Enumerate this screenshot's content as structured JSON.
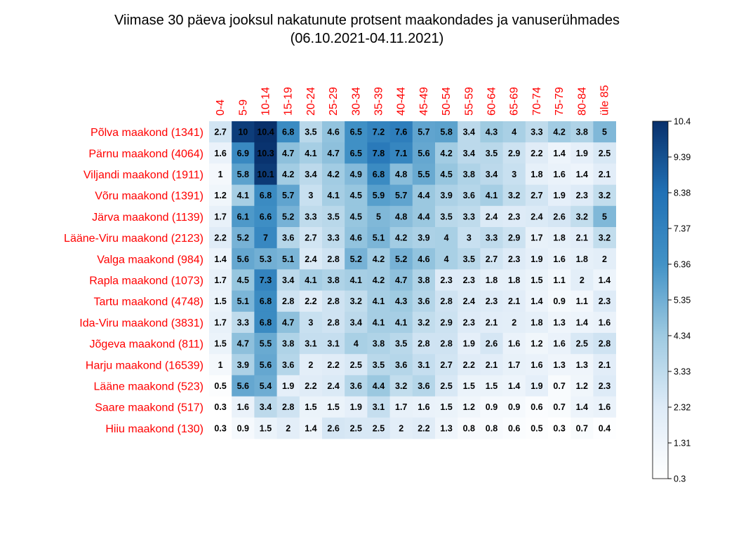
{
  "chart_data": {
    "type": "heatmap",
    "title": "Viimase 30 päeva jooksul nakatunute protsent maakondades ja vanuserühmades",
    "subtitle": "(06.10.2021-04.11.2021)",
    "columns": [
      "0-4",
      "5-9",
      "10-14",
      "15-19",
      "20-24",
      "25-29",
      "30-34",
      "35-39",
      "40-44",
      "45-49",
      "50-54",
      "55-59",
      "60-64",
      "65-69",
      "70-74",
      "75-79",
      "80-84",
      "üle 85"
    ],
    "rows": [
      "Põlva maakond (1341)",
      "Pärnu maakond (4064)",
      "Viljandi maakond (1911)",
      "Võru maakond (1391)",
      "Järva maakond (1139)",
      "Lääne-Viru maakond (2123)",
      "Valga maakond (984)",
      "Rapla maakond (1073)",
      "Tartu maakond (4748)",
      "Ida-Viru maakond (3831)",
      "Jõgeva maakond (811)",
      "Harju maakond (16539)",
      "Lääne maakond (523)",
      "Saare maakond (517)",
      "Hiiu maakond (130)"
    ],
    "values": [
      [
        2.7,
        10,
        10.4,
        6.8,
        3.5,
        4.6,
        6.5,
        7.2,
        7.6,
        5.7,
        5.8,
        3.4,
        4.3,
        4,
        3.3,
        4.2,
        3.8,
        5
      ],
      [
        1.6,
        6.9,
        10.3,
        4.7,
        4.1,
        4.7,
        6.5,
        7.8,
        7.1,
        5.6,
        4.2,
        3.4,
        3.5,
        2.9,
        2.2,
        1.4,
        1.9,
        2.5
      ],
      [
        1,
        5.8,
        10.1,
        4.2,
        3.4,
        4.2,
        4.9,
        6.8,
        4.8,
        5.5,
        4.5,
        3.8,
        3.4,
        3,
        1.8,
        1.6,
        1.4,
        2.1
      ],
      [
        1.2,
        4.1,
        6.8,
        5.7,
        3,
        4.1,
        4.5,
        5.9,
        5.7,
        4.4,
        3.9,
        3.6,
        4.1,
        3.2,
        2.7,
        1.9,
        2.3,
        3.2
      ],
      [
        1.7,
        6.1,
        6.6,
        5.2,
        3.3,
        3.5,
        4.5,
        5,
        4.8,
        4.4,
        3.5,
        3.3,
        2.4,
        2.3,
        2.4,
        2.6,
        3.2,
        5
      ],
      [
        2.2,
        5.2,
        7,
        3.6,
        2.7,
        3.3,
        4.6,
        5.1,
        4.2,
        3.9,
        4,
        3,
        3.3,
        2.9,
        1.7,
        1.8,
        2.1,
        3.2
      ],
      [
        1.4,
        5.6,
        5.3,
        5.1,
        2.4,
        2.8,
        5.2,
        4.2,
        5.2,
        4.6,
        4,
        3.5,
        2.7,
        2.3,
        1.9,
        1.6,
        1.8,
        2
      ],
      [
        1.7,
        4.5,
        7.3,
        3.4,
        4.1,
        3.8,
        4.1,
        4.2,
        4.7,
        3.8,
        2.3,
        2.3,
        1.8,
        1.8,
        1.5,
        1.1,
        2,
        1.4
      ],
      [
        1.5,
        5.1,
        6.8,
        2.8,
        2.2,
        2.8,
        3.2,
        4.1,
        4.3,
        3.6,
        2.8,
        2.4,
        2.3,
        2.1,
        1.4,
        0.9,
        1.1,
        2.3
      ],
      [
        1.7,
        3.3,
        6.8,
        4.7,
        3,
        2.8,
        3.4,
        4.1,
        4.1,
        3.2,
        2.9,
        2.3,
        2.1,
        2,
        1.8,
        1.3,
        1.4,
        1.6
      ],
      [
        1.5,
        4.7,
        5.5,
        3.8,
        3.1,
        3.1,
        4,
        3.8,
        3.5,
        2.8,
        2.8,
        1.9,
        2.6,
        1.6,
        1.2,
        1.6,
        2.5,
        2.8
      ],
      [
        1,
        3.9,
        5.6,
        3.6,
        2,
        2.2,
        2.5,
        3.5,
        3.6,
        3.1,
        2.7,
        2.2,
        2.1,
        1.7,
        1.6,
        1.3,
        1.3,
        2.1
      ],
      [
        0.5,
        5.6,
        5.4,
        1.9,
        2.2,
        2.4,
        3.6,
        4.4,
        3.2,
        3.6,
        2.5,
        1.5,
        1.5,
        1.4,
        1.9,
        0.7,
        1.2,
        2.3
      ],
      [
        0.3,
        1.6,
        3.4,
        2.8,
        1.5,
        1.5,
        1.9,
        3.1,
        1.7,
        1.6,
        1.5,
        1.2,
        0.9,
        0.9,
        0.6,
        0.7,
        1.4,
        1.6
      ],
      [
        0.3,
        0.9,
        1.5,
        2,
        1.4,
        2.6,
        2.5,
        2.5,
        2,
        2.2,
        1.3,
        0.8,
        0.8,
        0.6,
        0.5,
        0.3,
        0.7,
        0.4
      ]
    ],
    "value_range": [
      0.3,
      10.4
    ],
    "legend_ticks": [
      "10.4",
      "9.39",
      "8.38",
      "7.37",
      "6.36",
      "5.35",
      "4.34",
      "3.33",
      "2.32",
      "1.31",
      "0.3"
    ],
    "legend_position": "right",
    "colors": {
      "low": "#ffffff",
      "high": "#08306b",
      "label_color": "#ff0000",
      "text_color": "#000000"
    }
  }
}
